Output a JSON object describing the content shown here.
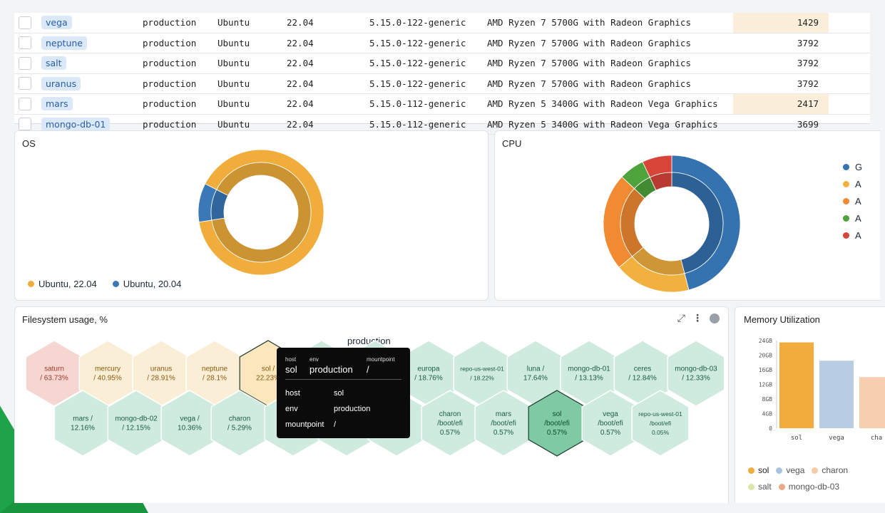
{
  "table": {
    "rows": [
      {
        "host": "vega",
        "env": "production",
        "os": "Ubuntu",
        "ver": "22.04",
        "kernel": "5.15.0-122-generic",
        "cpu": "AMD Ryzen 7 5700G with Radeon Graphics",
        "mem": "1429",
        "hl": true
      },
      {
        "host": "neptune",
        "env": "production",
        "os": "Ubuntu",
        "ver": "22.04",
        "kernel": "5.15.0-122-generic",
        "cpu": "AMD Ryzen 7 5700G with Radeon Graphics",
        "mem": "3792",
        "hl": false
      },
      {
        "host": "salt",
        "env": "production",
        "os": "Ubuntu",
        "ver": "22.04",
        "kernel": "5.15.0-122-generic",
        "cpu": "AMD Ryzen 7 5700G with Radeon Graphics",
        "mem": "3792",
        "hl": false
      },
      {
        "host": "uranus",
        "env": "production",
        "os": "Ubuntu",
        "ver": "22.04",
        "kernel": "5.15.0-122-generic",
        "cpu": "AMD Ryzen 7 5700G with Radeon Graphics",
        "mem": "3792",
        "hl": false
      },
      {
        "host": "mars",
        "env": "production",
        "os": "Ubuntu",
        "ver": "22.04",
        "kernel": "5.15.0-112-generic",
        "cpu": "AMD Ryzen 5 3400G with Radeon Vega Graphics",
        "mem": "2417",
        "hl": true
      },
      {
        "host": "mongo-db-01",
        "env": "production",
        "os": "Ubuntu",
        "ver": "22.04",
        "kernel": "5.15.0-112-generic",
        "cpu": "AMD Ryzen 5 3400G with Radeon Vega Graphics",
        "mem": "3699",
        "hl": false
      }
    ]
  },
  "os_panel": {
    "title": "OS",
    "legend": [
      {
        "label": "Ubuntu, 22.04",
        "color": "#f0ad3c"
      },
      {
        "label": "Ubuntu, 20.04",
        "color": "#3a78b8"
      }
    ],
    "slices": [
      {
        "name": "Ubuntu, 22.04",
        "value": 90,
        "color": "#f0ad3c"
      },
      {
        "name": "Ubuntu, 20.04",
        "value": 10,
        "color": "#3a78b8"
      }
    ]
  },
  "cpu_panel": {
    "title": "CPU",
    "legend_marks": [
      "G",
      "A",
      "A",
      "A",
      "A"
    ],
    "slices": [
      {
        "value": 46,
        "color": "#3572b0"
      },
      {
        "value": 18,
        "color": "#f2b13f"
      },
      {
        "value": 23,
        "color": "#f08a33"
      },
      {
        "value": 6,
        "color": "#4ea33c"
      },
      {
        "value": 7,
        "color": "#d84438"
      }
    ]
  },
  "fs_panel": {
    "title": "Filesystem usage, %",
    "group_label": "production",
    "hexes": [
      {
        "l1": "saturn",
        "l2": "/ 63.73%",
        "fill": "#f6d6d0",
        "text": "#a33a2c"
      },
      {
        "l1": "mercury",
        "l2": "/ 40.95%",
        "fill": "#fbeed6",
        "text": "#8a5a10"
      },
      {
        "l1": "uranus",
        "l2": "/ 28.91%",
        "fill": "#fbeed6",
        "text": "#8a5a10"
      },
      {
        "l1": "neptune",
        "l2": "/ 28.1%",
        "fill": "#fbeed6",
        "text": "#8a5a10"
      },
      {
        "l1": "sol /",
        "l2": "22.23%",
        "fill": "#fbe6bd",
        "text": "#8a5a10"
      },
      {
        "l1": "",
        "l2": "",
        "fill": "#cfeade",
        "text": "#1b5e40"
      },
      {
        "l1": "",
        "l2": "",
        "fill": "#cfeade",
        "text": "#1b5e40"
      },
      {
        "l1": "europa",
        "l2": "/ 18.76%",
        "fill": "#cfeade",
        "text": "#1b5e40"
      },
      {
        "l1": "repo-us-west-01",
        "l2": "/ 18.22%",
        "fill": "#cfeade",
        "text": "#1b5e40"
      },
      {
        "l1": "luna /",
        "l2": "17.64%",
        "fill": "#cfeade",
        "text": "#1b5e40"
      },
      {
        "l1": "mongo-db-01",
        "l2": "/ 13.13%",
        "fill": "#cfeade",
        "text": "#1b5e40"
      },
      {
        "l1": "ceres",
        "l2": "/ 12.84%",
        "fill": "#cfeade",
        "text": "#1b5e40"
      },
      {
        "l1": "mongo-db-03",
        "l2": "/ 12.33%",
        "fill": "#cfeade",
        "text": "#1b5e40"
      },
      {
        "l1": "mars /",
        "l2": "12.16%",
        "fill": "#cfeade",
        "text": "#1b5e40"
      },
      {
        "l1": "mongo-db-02",
        "l2": "/ 12.15%",
        "fill": "#cfeade",
        "text": "#1b5e40"
      },
      {
        "l1": "vega /",
        "l2": "10.36%",
        "fill": "#cfeade",
        "text": "#1b5e40"
      },
      {
        "l1": "charon",
        "l2": "/ 5.29%",
        "fill": "#cfeade",
        "text": "#1b5e40"
      },
      {
        "l1": "",
        "l2": "",
        "fill": "#cfeade",
        "text": "#1b5e40"
      },
      {
        "l1": "",
        "l2": "",
        "fill": "#cfeade",
        "text": "#1b5e40"
      },
      {
        "l1": "",
        "l2": "",
        "fill": "#cfeade",
        "text": "#1b5e40"
      },
      {
        "l1": "charon",
        "l2": "/boot/efi",
        "l3": "0.57%",
        "fill": "#cfeade",
        "text": "#1b5e40"
      },
      {
        "l1": "mars",
        "l2": "/boot/efi",
        "l3": "0.57%",
        "fill": "#cfeade",
        "text": "#1b5e40"
      },
      {
        "l1": "sol",
        "l2": "/boot/efi",
        "l3": "0.57%",
        "fill": "#7fcaa5",
        "text": "#0d4a2c"
      },
      {
        "l1": "vega",
        "l2": "/boot/efi",
        "l3": "0.57%",
        "fill": "#cfeade",
        "text": "#1b5e40"
      },
      {
        "l1": "repo-us-west-01",
        "l2": "/boot/efi",
        "l3": "0.05%",
        "fill": "#cfeade",
        "text": "#1b5e40"
      }
    ],
    "tooltip": {
      "h_host": "host",
      "h_env": "env",
      "h_mount": "mountpoint",
      "v_host": "sol",
      "v_env": "production",
      "v_mount": "/",
      "rows": [
        {
          "k": "host",
          "v": "sol"
        },
        {
          "k": "env",
          "v": "production"
        },
        {
          "k": "mountpoint",
          "v": "/"
        }
      ]
    }
  },
  "mem_panel": {
    "title": "Memory Utilization",
    "chart_data": {
      "type": "bar",
      "categories": [
        "sol",
        "vega",
        "cha"
      ],
      "values": [
        23.5,
        18.5,
        14
      ],
      "colors": [
        "#f0ad3c",
        "#b8cde3",
        "#f7cfb0"
      ],
      "yticks": [
        "24GB",
        "20GB",
        "16GB",
        "12GB",
        "8GB",
        "4GB",
        "0"
      ],
      "ylim": [
        0,
        24
      ]
    },
    "legend1": [
      {
        "label": "sol",
        "color": "#f0ad3c"
      },
      {
        "label": "vega",
        "color": "#a9c3de"
      },
      {
        "label": "charon",
        "color": "#f6cba8"
      }
    ],
    "legend2": [
      {
        "label": "salt",
        "color": "#dbe6a8"
      },
      {
        "label": "mongo-db-03",
        "color": "#e9a886"
      }
    ]
  }
}
